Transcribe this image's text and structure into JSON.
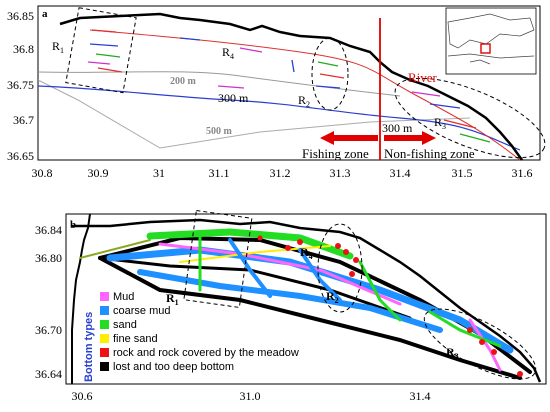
{
  "panel_a": {
    "letter": "a",
    "y_ticks": [
      "36.85",
      "36.8",
      "36.75",
      "36.7",
      "36.65"
    ],
    "x_ticks": [
      "30.8",
      "30.9",
      "31",
      "31.1",
      "31.2",
      "31.3",
      "31.4",
      "31.5",
      "31.6"
    ],
    "regions": [
      {
        "name": "R",
        "sub": "1"
      },
      {
        "name": "R",
        "sub": "4"
      },
      {
        "name": "R",
        "sub": "2"
      },
      {
        "name": "R",
        "sub": "3"
      }
    ],
    "contours": [
      "200 m",
      "300 m",
      "500 m"
    ],
    "boundary_depth": "300 m",
    "river_label": "River",
    "fishing_zone": "Fishing zone",
    "non_fishing_zone": "Non-fishing zone",
    "colors": {
      "shallow_contour": "#e03030",
      "deep_contour": "#2a3fd0",
      "grey_contour": "#999999",
      "boundary": "#e00000"
    }
  },
  "panel_b": {
    "letter": "b",
    "y_ticks": [
      "36.84",
      "36.80",
      "36.70",
      "36.64"
    ],
    "x_ticks": [
      "30.6",
      "31.0",
      "31.4"
    ],
    "regions": [
      {
        "name": "R",
        "sub": "1"
      },
      {
        "name": "R",
        "sub": "4"
      },
      {
        "name": "R",
        "sub": "2"
      },
      {
        "name": "R",
        "sub": "3"
      }
    ],
    "legend_title": "Bottom types",
    "legend": [
      {
        "label": "Mud",
        "color": "#ff66ff"
      },
      {
        "label": "coarse mud",
        "color": "#1e90ff"
      },
      {
        "label": "sand",
        "color": "#22dd22"
      },
      {
        "label": "fine sand",
        "color": "#ffee00"
      },
      {
        "label": "rock and rock covered by the meadow",
        "color": "#ee1111"
      },
      {
        "label": "lost and too deep bottom",
        "color": "#000000"
      }
    ]
  }
}
